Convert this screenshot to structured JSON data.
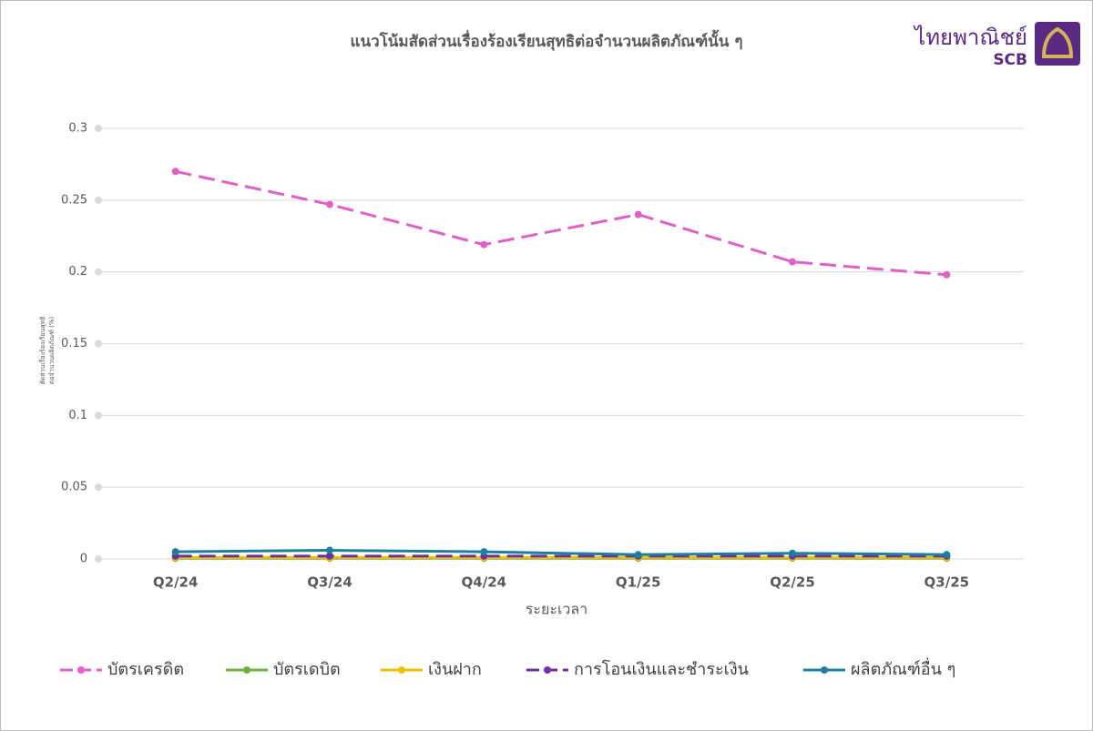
{
  "logo": {
    "name": "ไทยพาณิชย์",
    "abbr": "SCB"
  },
  "chart_data": {
    "type": "line",
    "title": "แนวโน้มสัดส่วนเรื่องร้องเรียนสุทธิต่อจำนวนผลิตภัณฑ์นั้น ๆ",
    "x_label": "ระยะเวลา",
    "y_label": [
      "สัดส่วนเรื่องร้องเรียนสุทธิ",
      "ต่อจำนวนผลิตภัณฑ์ (%)"
    ],
    "categories": [
      "Q2/24",
      "Q3/24",
      "Q4/24",
      "Q1/25",
      "Q2/25",
      "Q3/25"
    ],
    "ylim": [
      0,
      0.3
    ],
    "yticks": [
      0,
      0.05,
      0.1,
      0.15,
      0.2,
      0.25,
      0.3
    ],
    "grid": true,
    "legend": "bottom",
    "series": [
      {
        "name": "บัตรเครดิต",
        "color": "#e060c8",
        "dashed": true,
        "values": [
          0.27,
          0.247,
          0.219,
          0.24,
          0.207,
          0.198
        ]
      },
      {
        "name": "บัตรเดบิต",
        "color": "#70b040",
        "dashed": false,
        "values": [
          0.0005,
          0.0005,
          0.0005,
          0.0005,
          0.0005,
          0.0005
        ]
      },
      {
        "name": "เงินฝาก",
        "color": "#f0c000",
        "dashed": false,
        "values": [
          0.001,
          0.001,
          0.001,
          0.001,
          0.001,
          0.001
        ]
      },
      {
        "name": "การโอนเงินและชำระเงิน",
        "color": "#7030a0",
        "dashed": true,
        "values": [
          0.002,
          0.002,
          0.002,
          0.002,
          0.002,
          0.002
        ]
      },
      {
        "name": "ผลิตภัณฑ์อื่น ๆ",
        "color": "#1a7fa0",
        "dashed": false,
        "values": [
          0.005,
          0.006,
          0.005,
          0.003,
          0.004,
          0.003
        ]
      }
    ]
  }
}
